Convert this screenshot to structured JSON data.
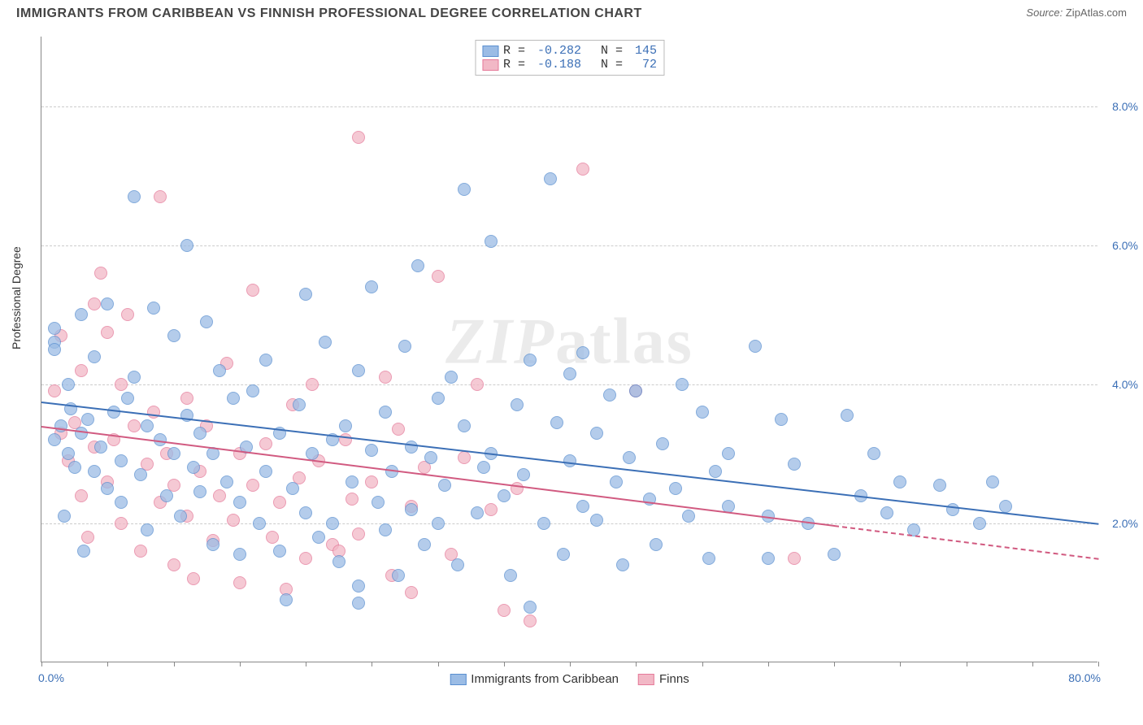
{
  "header": {
    "title": "IMMIGRANTS FROM CARIBBEAN VS FINNISH PROFESSIONAL DEGREE CORRELATION CHART",
    "source_label": "Source:",
    "source_value": "ZipAtlas.com"
  },
  "watermark": "ZIPatlas",
  "chart": {
    "type": "scatter",
    "ylabel": "Professional Degree",
    "xlim": [
      0,
      80
    ],
    "ylim": [
      0,
      9
    ],
    "x_tick_labels": {
      "min": "0.0%",
      "max": "80.0%"
    },
    "y_ticks": [
      2,
      4,
      6,
      8
    ],
    "y_tick_labels": [
      "2.0%",
      "4.0%",
      "6.0%",
      "8.0%"
    ],
    "x_minor_step": 5,
    "background_color": "#ffffff",
    "grid_color": "#cccccc",
    "axis_color": "#888888",
    "tick_label_color": "#3b6fb6",
    "series": [
      {
        "name": "Immigrants from Caribbean",
        "fill": "#9bbce5",
        "stroke": "#5a8fd0",
        "line_color": "#3b6fb6",
        "R": "-0.282",
        "N": "145",
        "reg_y_at_xmin": 3.75,
        "reg_y_at_xmax": 2.0,
        "line_dash_after_x": 80,
        "points": [
          [
            1,
            4.8
          ],
          [
            1,
            4.6
          ],
          [
            1,
            4.5
          ],
          [
            1,
            3.2
          ],
          [
            1.5,
            3.4
          ],
          [
            1.7,
            2.1
          ],
          [
            2,
            4.0
          ],
          [
            2,
            3.0
          ],
          [
            2.2,
            3.65
          ],
          [
            2.5,
            2.8
          ],
          [
            3,
            5.0
          ],
          [
            3,
            3.3
          ],
          [
            3.2,
            1.6
          ],
          [
            3.5,
            3.5
          ],
          [
            4,
            2.75
          ],
          [
            4,
            4.4
          ],
          [
            4.5,
            3.1
          ],
          [
            5,
            5.15
          ],
          [
            5,
            2.5
          ],
          [
            5.5,
            3.6
          ],
          [
            6,
            2.9
          ],
          [
            6,
            2.3
          ],
          [
            6.5,
            3.8
          ],
          [
            7,
            6.7
          ],
          [
            7,
            4.1
          ],
          [
            7.5,
            2.7
          ],
          [
            8,
            3.4
          ],
          [
            8,
            1.9
          ],
          [
            8.5,
            5.1
          ],
          [
            9,
            3.2
          ],
          [
            9.5,
            2.4
          ],
          [
            10,
            4.7
          ],
          [
            10,
            3.0
          ],
          [
            10.5,
            2.1
          ],
          [
            11,
            3.55
          ],
          [
            11,
            6.0
          ],
          [
            11.5,
            2.8
          ],
          [
            12,
            3.3
          ],
          [
            12,
            2.45
          ],
          [
            12.5,
            4.9
          ],
          [
            13,
            1.7
          ],
          [
            13,
            3.0
          ],
          [
            13.5,
            4.2
          ],
          [
            14,
            2.6
          ],
          [
            14.5,
            3.8
          ],
          [
            15,
            2.3
          ],
          [
            15,
            1.55
          ],
          [
            15.5,
            3.1
          ],
          [
            16,
            3.9
          ],
          [
            16.5,
            2.0
          ],
          [
            17,
            2.75
          ],
          [
            17,
            4.35
          ],
          [
            18,
            1.6
          ],
          [
            18,
            3.3
          ],
          [
            18.5,
            0.9
          ],
          [
            19,
            2.5
          ],
          [
            19.5,
            3.7
          ],
          [
            20,
            2.15
          ],
          [
            20,
            5.3
          ],
          [
            20.5,
            3.0
          ],
          [
            21,
            1.8
          ],
          [
            21.5,
            4.6
          ],
          [
            22,
            3.2
          ],
          [
            22,
            2.0
          ],
          [
            22.5,
            1.45
          ],
          [
            23,
            3.4
          ],
          [
            23.5,
            2.6
          ],
          [
            24,
            4.2
          ],
          [
            24,
            1.1
          ],
          [
            24,
            0.85
          ],
          [
            25,
            5.4
          ],
          [
            25,
            3.05
          ],
          [
            25.5,
            2.3
          ],
          [
            26,
            3.6
          ],
          [
            26,
            1.9
          ],
          [
            26.5,
            2.75
          ],
          [
            27,
            1.25
          ],
          [
            27.5,
            4.55
          ],
          [
            28,
            3.1
          ],
          [
            28,
            2.2
          ],
          [
            28.5,
            5.7
          ],
          [
            29,
            1.7
          ],
          [
            29.5,
            2.95
          ],
          [
            30,
            3.8
          ],
          [
            30,
            2.0
          ],
          [
            30.5,
            2.55
          ],
          [
            31,
            4.1
          ],
          [
            31.5,
            1.4
          ],
          [
            32,
            3.4
          ],
          [
            32,
            6.8
          ],
          [
            33,
            2.15
          ],
          [
            33.5,
            2.8
          ],
          [
            34,
            6.05
          ],
          [
            34,
            3.0
          ],
          [
            35,
            2.4
          ],
          [
            35.5,
            1.25
          ],
          [
            36,
            3.7
          ],
          [
            36.5,
            2.7
          ],
          [
            37,
            0.8
          ],
          [
            37,
            4.35
          ],
          [
            38,
            2.0
          ],
          [
            38.5,
            6.95
          ],
          [
            39,
            3.45
          ],
          [
            39.5,
            1.55
          ],
          [
            40,
            2.9
          ],
          [
            40,
            4.15
          ],
          [
            41,
            4.45
          ],
          [
            41,
            2.25
          ],
          [
            42,
            3.3
          ],
          [
            42,
            2.05
          ],
          [
            43,
            3.85
          ],
          [
            43.5,
            2.6
          ],
          [
            44,
            1.4
          ],
          [
            44.5,
            2.95
          ],
          [
            45,
            3.9
          ],
          [
            46,
            2.35
          ],
          [
            46.5,
            1.7
          ],
          [
            47,
            3.15
          ],
          [
            48,
            2.5
          ],
          [
            48.5,
            4.0
          ],
          [
            49,
            2.1
          ],
          [
            50,
            3.6
          ],
          [
            50.5,
            1.5
          ],
          [
            51,
            2.75
          ],
          [
            52,
            3.0
          ],
          [
            52,
            2.25
          ],
          [
            54,
            4.55
          ],
          [
            55,
            2.1
          ],
          [
            55,
            1.5
          ],
          [
            56,
            3.5
          ],
          [
            57,
            2.85
          ],
          [
            58,
            2.0
          ],
          [
            60,
            1.55
          ],
          [
            61,
            3.55
          ],
          [
            62,
            2.4
          ],
          [
            63,
            3.0
          ],
          [
            64,
            2.15
          ],
          [
            65,
            2.6
          ],
          [
            66,
            1.9
          ],
          [
            68,
            2.55
          ],
          [
            69,
            2.2
          ],
          [
            71,
            2.0
          ],
          [
            72,
            2.6
          ],
          [
            73,
            2.25
          ]
        ]
      },
      {
        "name": "Finns",
        "fill": "#f2b8c6",
        "stroke": "#e57a9a",
        "line_color": "#d15a80",
        "R": "-0.188",
        "N": "72",
        "reg_y_at_xmin": 3.4,
        "reg_y_at_xmax": 1.5,
        "line_dash_after_x": 60,
        "points": [
          [
            1,
            3.9
          ],
          [
            1.5,
            3.3
          ],
          [
            1.5,
            4.7
          ],
          [
            2,
            2.9
          ],
          [
            2.5,
            3.45
          ],
          [
            3,
            4.2
          ],
          [
            3,
            2.4
          ],
          [
            3.5,
            1.8
          ],
          [
            4,
            5.15
          ],
          [
            4,
            3.1
          ],
          [
            4.5,
            5.6
          ],
          [
            5,
            2.6
          ],
          [
            5,
            4.75
          ],
          [
            5.5,
            3.2
          ],
          [
            6,
            2.0
          ],
          [
            6,
            4.0
          ],
          [
            6.5,
            5.0
          ],
          [
            7,
            3.4
          ],
          [
            7.5,
            1.6
          ],
          [
            8,
            2.85
          ],
          [
            8.5,
            3.6
          ],
          [
            9,
            6.7
          ],
          [
            9,
            2.3
          ],
          [
            9.5,
            3.0
          ],
          [
            10,
            1.4
          ],
          [
            10,
            2.55
          ],
          [
            11,
            3.8
          ],
          [
            11,
            2.1
          ],
          [
            11.5,
            1.2
          ],
          [
            12,
            2.75
          ],
          [
            12.5,
            3.4
          ],
          [
            13,
            1.75
          ],
          [
            13.5,
            2.4
          ],
          [
            14,
            4.3
          ],
          [
            14.5,
            2.05
          ],
          [
            15,
            3.0
          ],
          [
            15,
            1.15
          ],
          [
            16,
            5.35
          ],
          [
            16,
            2.55
          ],
          [
            17,
            3.15
          ],
          [
            17.5,
            1.8
          ],
          [
            18,
            2.3
          ],
          [
            18.5,
            1.05
          ],
          [
            19,
            3.7
          ],
          [
            19.5,
            2.65
          ],
          [
            20,
            1.5
          ],
          [
            20.5,
            4.0
          ],
          [
            21,
            2.9
          ],
          [
            22,
            1.7
          ],
          [
            22.5,
            1.6
          ],
          [
            23,
            3.2
          ],
          [
            23.5,
            2.35
          ],
          [
            24,
            7.55
          ],
          [
            24,
            1.85
          ],
          [
            25,
            2.6
          ],
          [
            26,
            4.1
          ],
          [
            26.5,
            1.25
          ],
          [
            27,
            3.35
          ],
          [
            28,
            2.25
          ],
          [
            28,
            1.0
          ],
          [
            29,
            2.8
          ],
          [
            30,
            5.55
          ],
          [
            31,
            1.55
          ],
          [
            32,
            2.95
          ],
          [
            33,
            4.0
          ],
          [
            34,
            2.2
          ],
          [
            35,
            0.75
          ],
          [
            36,
            2.5
          ],
          [
            37,
            0.6
          ],
          [
            41,
            7.1
          ],
          [
            45,
            3.9
          ],
          [
            57,
            1.5
          ]
        ]
      }
    ]
  },
  "legend": {
    "series1": "Immigrants from Caribbean",
    "series2": "Finns"
  }
}
